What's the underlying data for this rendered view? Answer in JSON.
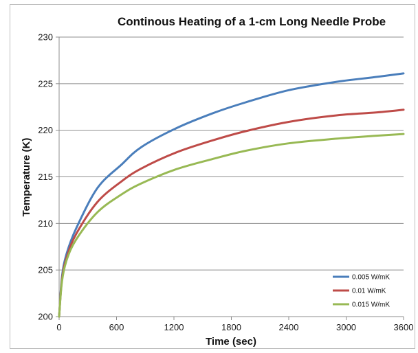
{
  "chart_data": {
    "type": "line",
    "title": "Continous Heating of a 1-cm Long Needle Probe",
    "xlabel": "Time (sec)",
    "ylabel": "Temperature (K)",
    "xlim": [
      0,
      3600
    ],
    "ylim": [
      200,
      230
    ],
    "xticks": [
      0,
      600,
      1200,
      1800,
      2400,
      3000,
      3600
    ],
    "yticks": [
      200,
      205,
      210,
      215,
      220,
      225,
      230
    ],
    "grid": "horizontal",
    "legend_position": "bottom-right",
    "series": [
      {
        "name": "0.005 W/mK",
        "color": "#4a7ebb",
        "x": [
          0,
          30,
          80,
          180,
          400,
          650,
          860,
          1220,
          1600,
          1950,
          2400,
          2900,
          3300,
          3600
        ],
        "y": [
          200.0,
          204.3,
          206.8,
          209.5,
          213.8,
          216.3,
          218.2,
          220.2,
          221.8,
          223.0,
          224.3,
          225.2,
          225.7,
          226.1
        ]
      },
      {
        "name": "0.01 W/mK",
        "color": "#be4b48",
        "x": [
          0,
          30,
          80,
          180,
          400,
          650,
          860,
          1220,
          1600,
          1950,
          2400,
          2900,
          3300,
          3600
        ],
        "y": [
          200.0,
          204.0,
          206.4,
          208.9,
          212.3,
          214.5,
          215.9,
          217.6,
          218.9,
          219.9,
          220.9,
          221.6,
          221.9,
          222.2
        ]
      },
      {
        "name": "0.015 W/mK",
        "color": "#98b954",
        "x": [
          0,
          30,
          80,
          180,
          400,
          650,
          860,
          1220,
          1600,
          1950,
          2400,
          2900,
          3300,
          3600
        ],
        "y": [
          200.0,
          203.8,
          206.1,
          208.3,
          211.2,
          213.1,
          214.3,
          215.8,
          216.9,
          217.8,
          218.6,
          219.1,
          219.4,
          219.6
        ]
      }
    ]
  }
}
